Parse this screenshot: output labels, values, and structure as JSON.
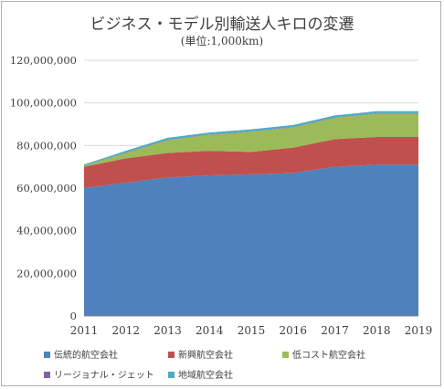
{
  "chart_data": {
    "type": "area",
    "title": "ビジネス・モデル別輸送人キロの変遷",
    "subtitle": "(単位:1,000km)",
    "x": [
      "2011",
      "2012",
      "2013",
      "2014",
      "2015",
      "2016",
      "2017",
      "2018",
      "2019"
    ],
    "y_ticks": [
      "0",
      "20,000,000",
      "40,000,000",
      "60,000,000",
      "80,000,000",
      "100,000,000",
      "120,000,000"
    ],
    "ylim": [
      0,
      120000000
    ],
    "stacked": true,
    "grid": true,
    "legend_position": "bottom",
    "series": [
      {
        "name": "伝統的航空会社",
        "color": "#4f81bd",
        "values": [
          60000000,
          62500000,
          65000000,
          66000000,
          66500000,
          67000000,
          70000000,
          71000000,
          71000000
        ]
      },
      {
        "name": "新興航空会社",
        "color": "#c0504d",
        "values": [
          10000000,
          11500000,
          11500000,
          11500000,
          10500000,
          12000000,
          13000000,
          13000000,
          13000000
        ]
      },
      {
        "name": "低コスト航空会社",
        "color": "#9bbb59",
        "values": [
          500000,
          2500000,
          6000000,
          7500000,
          9500000,
          9500000,
          10000000,
          11000000,
          11000000
        ]
      },
      {
        "name": "リージョナル・ジェット",
        "color": "#8064a2",
        "values": [
          100000,
          200000,
          200000,
          200000,
          200000,
          200000,
          200000,
          200000,
          200000
        ]
      },
      {
        "name": "地域航空会社",
        "color": "#4bacc6",
        "values": [
          500000,
          800000,
          900000,
          900000,
          900000,
          900000,
          900000,
          900000,
          900000
        ]
      }
    ]
  }
}
